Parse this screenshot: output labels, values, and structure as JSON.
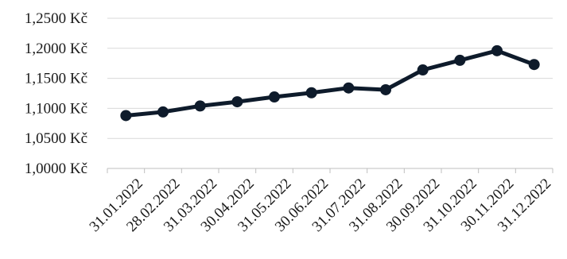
{
  "chart_data": {
    "type": "line",
    "title": "",
    "xlabel": "",
    "ylabel": "",
    "categories": [
      "31.01.2022",
      "28.02.2022",
      "31.03.2022",
      "30.04.2022",
      "31.05.2022",
      "30.06.2022",
      "31.07.2022",
      "31.08.2022",
      "30.09.2022",
      "31.10.2022",
      "30.11.2022",
      "31.12.2022"
    ],
    "y_ticks": [
      "1,0000 Kč",
      "1,0500 Kč",
      "1,1000 Kč",
      "1,1500 Kč",
      "1,2000 Kč",
      "1,2500 Kč"
    ],
    "ylim": [
      1.0,
      1.25
    ],
    "grid": true,
    "series": [
      {
        "values": [
          1.088,
          1.094,
          1.104,
          1.111,
          1.119,
          1.126,
          1.134,
          1.131,
          1.164,
          1.18,
          1.196,
          1.173
        ]
      }
    ],
    "line_color": "#0e1b2b"
  }
}
